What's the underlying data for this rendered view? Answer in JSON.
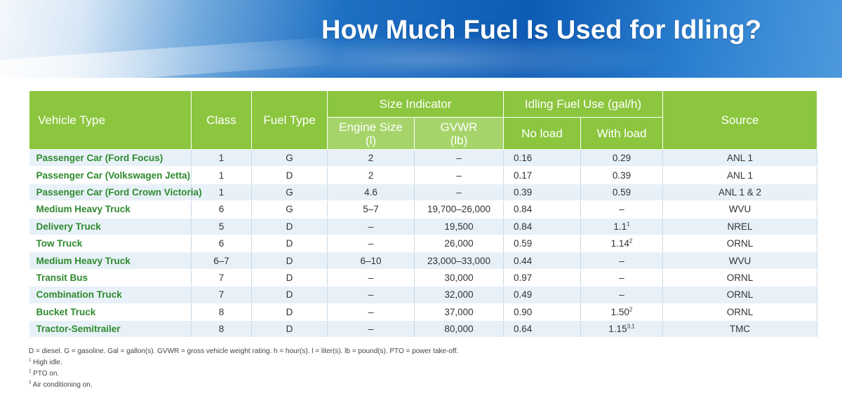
{
  "header": {
    "title": "How Much Fuel Is Used for Idling?"
  },
  "table": {
    "headers": {
      "vehicle_type": "Vehicle Type",
      "class": "Class",
      "fuel_type": "Fuel Type",
      "size_indicator": "Size Indicator",
      "engine_size": "Engine Size",
      "engine_size_unit": "(l)",
      "gvwr": "GVWR",
      "gvwr_unit": "(lb)",
      "idling_fuel_use": "Idling Fuel Use (gal/h)",
      "no_load": "No load",
      "with_load": "With load",
      "source": "Source"
    },
    "rows": [
      {
        "vehicle": "Passenger Car (Ford Focus)",
        "class": "1",
        "fuel": "G",
        "engine": "2",
        "gvwr": "–",
        "no_load": "0.16",
        "with_load": "0.29",
        "with_load_sup": "",
        "source": "ANL 1"
      },
      {
        "vehicle": "Passenger Car (Volkswagen Jetta)",
        "class": "1",
        "fuel": "D",
        "engine": "2",
        "gvwr": "–",
        "no_load": "0.17",
        "with_load": "0.39",
        "with_load_sup": "",
        "source": "ANL 1"
      },
      {
        "vehicle": "Passenger Car (Ford Crown Victoria)",
        "class": "1",
        "fuel": "G",
        "engine": "4.6",
        "gvwr": "–",
        "no_load": "0.39",
        "with_load": "0.59",
        "with_load_sup": "",
        "source": "ANL 1 & 2"
      },
      {
        "vehicle": "Medium Heavy Truck",
        "class": "6",
        "fuel": "G",
        "engine": "5–7",
        "gvwr": "19,700–26,000",
        "no_load": "0.84",
        "with_load": "–",
        "with_load_sup": "",
        "source": "WVU"
      },
      {
        "vehicle": "Delivery Truck",
        "class": "5",
        "fuel": "D",
        "engine": "–",
        "gvwr": "19,500",
        "no_load": "0.84",
        "with_load": "1.1",
        "with_load_sup": "1",
        "source": "NREL"
      },
      {
        "vehicle": "Tow Truck",
        "class": "6",
        "fuel": "D",
        "engine": "–",
        "gvwr": "26,000",
        "no_load": "0.59",
        "with_load": "1.14",
        "with_load_sup": "2",
        "source": "ORNL"
      },
      {
        "vehicle": "Medium Heavy Truck",
        "class": "6–7",
        "fuel": "D",
        "engine": "6–10",
        "gvwr": "23,000–33,000",
        "no_load": "0.44",
        "with_load": "–",
        "with_load_sup": "",
        "source": "WVU"
      },
      {
        "vehicle": "Transit Bus",
        "class": "7",
        "fuel": "D",
        "engine": "–",
        "gvwr": "30,000",
        "no_load": "0.97",
        "with_load": "–",
        "with_load_sup": "",
        "source": "ORNL"
      },
      {
        "vehicle": "Combination Truck",
        "class": "7",
        "fuel": "D",
        "engine": "–",
        "gvwr": "32,000",
        "no_load": "0.49",
        "with_load": "–",
        "with_load_sup": "",
        "source": "ORNL"
      },
      {
        "vehicle": "Bucket Truck",
        "class": "8",
        "fuel": "D",
        "engine": "–",
        "gvwr": "37,000",
        "no_load": "0.90",
        "with_load": "1.50",
        "with_load_sup": "2",
        "source": "ORNL"
      },
      {
        "vehicle": "Tractor-Semitrailer",
        "class": "8",
        "fuel": "D",
        "engine": "–",
        "gvwr": "80,000",
        "no_load": "0.64",
        "with_load": "1.15",
        "with_load_sup": "3,1",
        "source": "TMC"
      }
    ]
  },
  "notes": {
    "legend": "D = diesel. G = gasoline. Gal = gallon(s). GVWR = gross vehicle weight rating. h = hour(s). l = liter(s). lb = pound(s). PTO = power take-off.",
    "footnotes": [
      {
        "mark": "1",
        "text": "High idle."
      },
      {
        "mark": "2",
        "text": "PTO on."
      },
      {
        "mark": "3",
        "text": "Air conditioning on."
      }
    ]
  },
  "colors": {
    "header_green": "#8cc63f",
    "subheader_green": "#a6d46a",
    "vehicle_text_green": "#2e8a2e",
    "row_stripe": "#e8f1f8",
    "banner_blue": "#0d5bb5"
  }
}
